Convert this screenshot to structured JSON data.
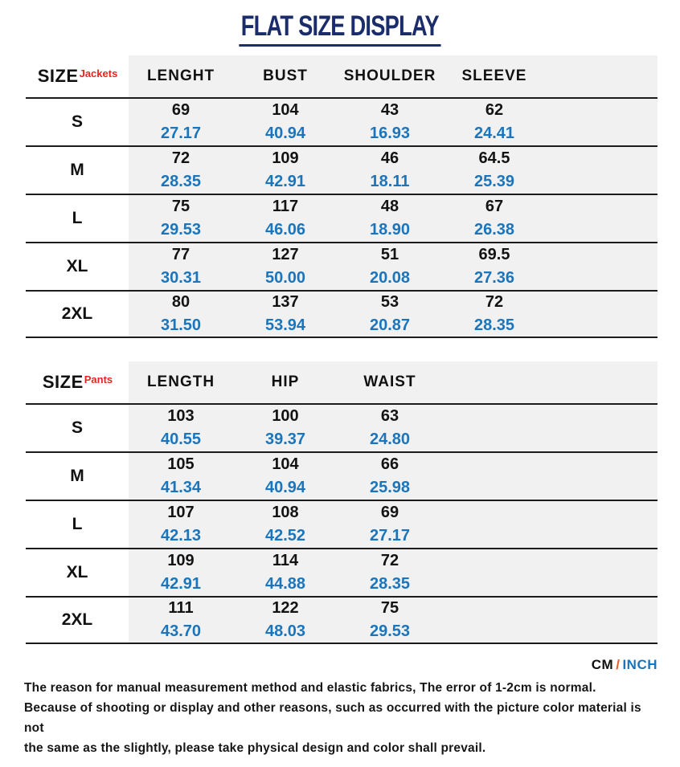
{
  "page": {
    "title": "FLAT SIZE DISPLAY"
  },
  "colors": {
    "title_navy": "#1b2c6b",
    "accent_red": "#e8251d",
    "inch_blue": "#1a75bc",
    "slash_orange": "#ee5a24",
    "row_bg": "#f1f1f2",
    "line": "#1c1c1c"
  },
  "units": {
    "cm": "CM",
    "separator": "/",
    "inch": "INCH"
  },
  "tables": [
    {
      "size_label": "SIZE",
      "category": "Jackets",
      "columns": [
        "LENGHT",
        "BUST",
        "SHOULDER",
        "SLEEVE"
      ],
      "rows": [
        {
          "size": "S",
          "cells": [
            {
              "cm": "69",
              "inch": "27.17"
            },
            {
              "cm": "104",
              "inch": "40.94"
            },
            {
              "cm": "43",
              "inch": "16.93"
            },
            {
              "cm": "62",
              "inch": "24.41"
            }
          ]
        },
        {
          "size": "M",
          "cells": [
            {
              "cm": "72",
              "inch": "28.35"
            },
            {
              "cm": "109",
              "inch": "42.91"
            },
            {
              "cm": "46",
              "inch": "18.11"
            },
            {
              "cm": "64.5",
              "inch": "25.39"
            }
          ]
        },
        {
          "size": "L",
          "cells": [
            {
              "cm": "75",
              "inch": "29.53"
            },
            {
              "cm": "117",
              "inch": "46.06"
            },
            {
              "cm": "48",
              "inch": "18.90"
            },
            {
              "cm": "67",
              "inch": "26.38"
            }
          ]
        },
        {
          "size": "XL",
          "cells": [
            {
              "cm": "77",
              "inch": "30.31"
            },
            {
              "cm": "127",
              "inch": "50.00"
            },
            {
              "cm": "51",
              "inch": "20.08"
            },
            {
              "cm": "69.5",
              "inch": "27.36"
            }
          ]
        },
        {
          "size": "2XL",
          "cells": [
            {
              "cm": "80",
              "inch": "31.50"
            },
            {
              "cm": "137",
              "inch": "53.94"
            },
            {
              "cm": "53",
              "inch": "20.87"
            },
            {
              "cm": "72",
              "inch": "28.35"
            }
          ]
        }
      ]
    },
    {
      "size_label": "SIZE",
      "category": "Pants",
      "columns": [
        "LENGTH",
        "HIP",
        "WAIST"
      ],
      "rows": [
        {
          "size": "S",
          "cells": [
            {
              "cm": "103",
              "inch": "40.55"
            },
            {
              "cm": "100",
              "inch": "39.37"
            },
            {
              "cm": "63",
              "inch": "24.80"
            }
          ]
        },
        {
          "size": "M",
          "cells": [
            {
              "cm": "105",
              "inch": "41.34"
            },
            {
              "cm": "104",
              "inch": "40.94"
            },
            {
              "cm": "66",
              "inch": "25.98"
            }
          ]
        },
        {
          "size": "L",
          "cells": [
            {
              "cm": "107",
              "inch": "42.13"
            },
            {
              "cm": "108",
              "inch": "42.52"
            },
            {
              "cm": "69",
              "inch": "27.17"
            }
          ]
        },
        {
          "size": "XL",
          "cells": [
            {
              "cm": "109",
              "inch": "42.91"
            },
            {
              "cm": "114",
              "inch": "44.88"
            },
            {
              "cm": "72",
              "inch": "28.35"
            }
          ]
        },
        {
          "size": "2XL",
          "cells": [
            {
              "cm": "111",
              "inch": "43.70"
            },
            {
              "cm": "122",
              "inch": "48.03"
            },
            {
              "cm": "75",
              "inch": "29.53"
            }
          ]
        }
      ]
    }
  ],
  "disclaimer": [
    "The reason for manual measurement method and elastic fabrics, The error of 1-2cm is normal.",
    "Because of shooting or display and other reasons, such as occurred with the picture color material is not",
    "the same as the slightly, please take physical design and color shall prevail."
  ]
}
